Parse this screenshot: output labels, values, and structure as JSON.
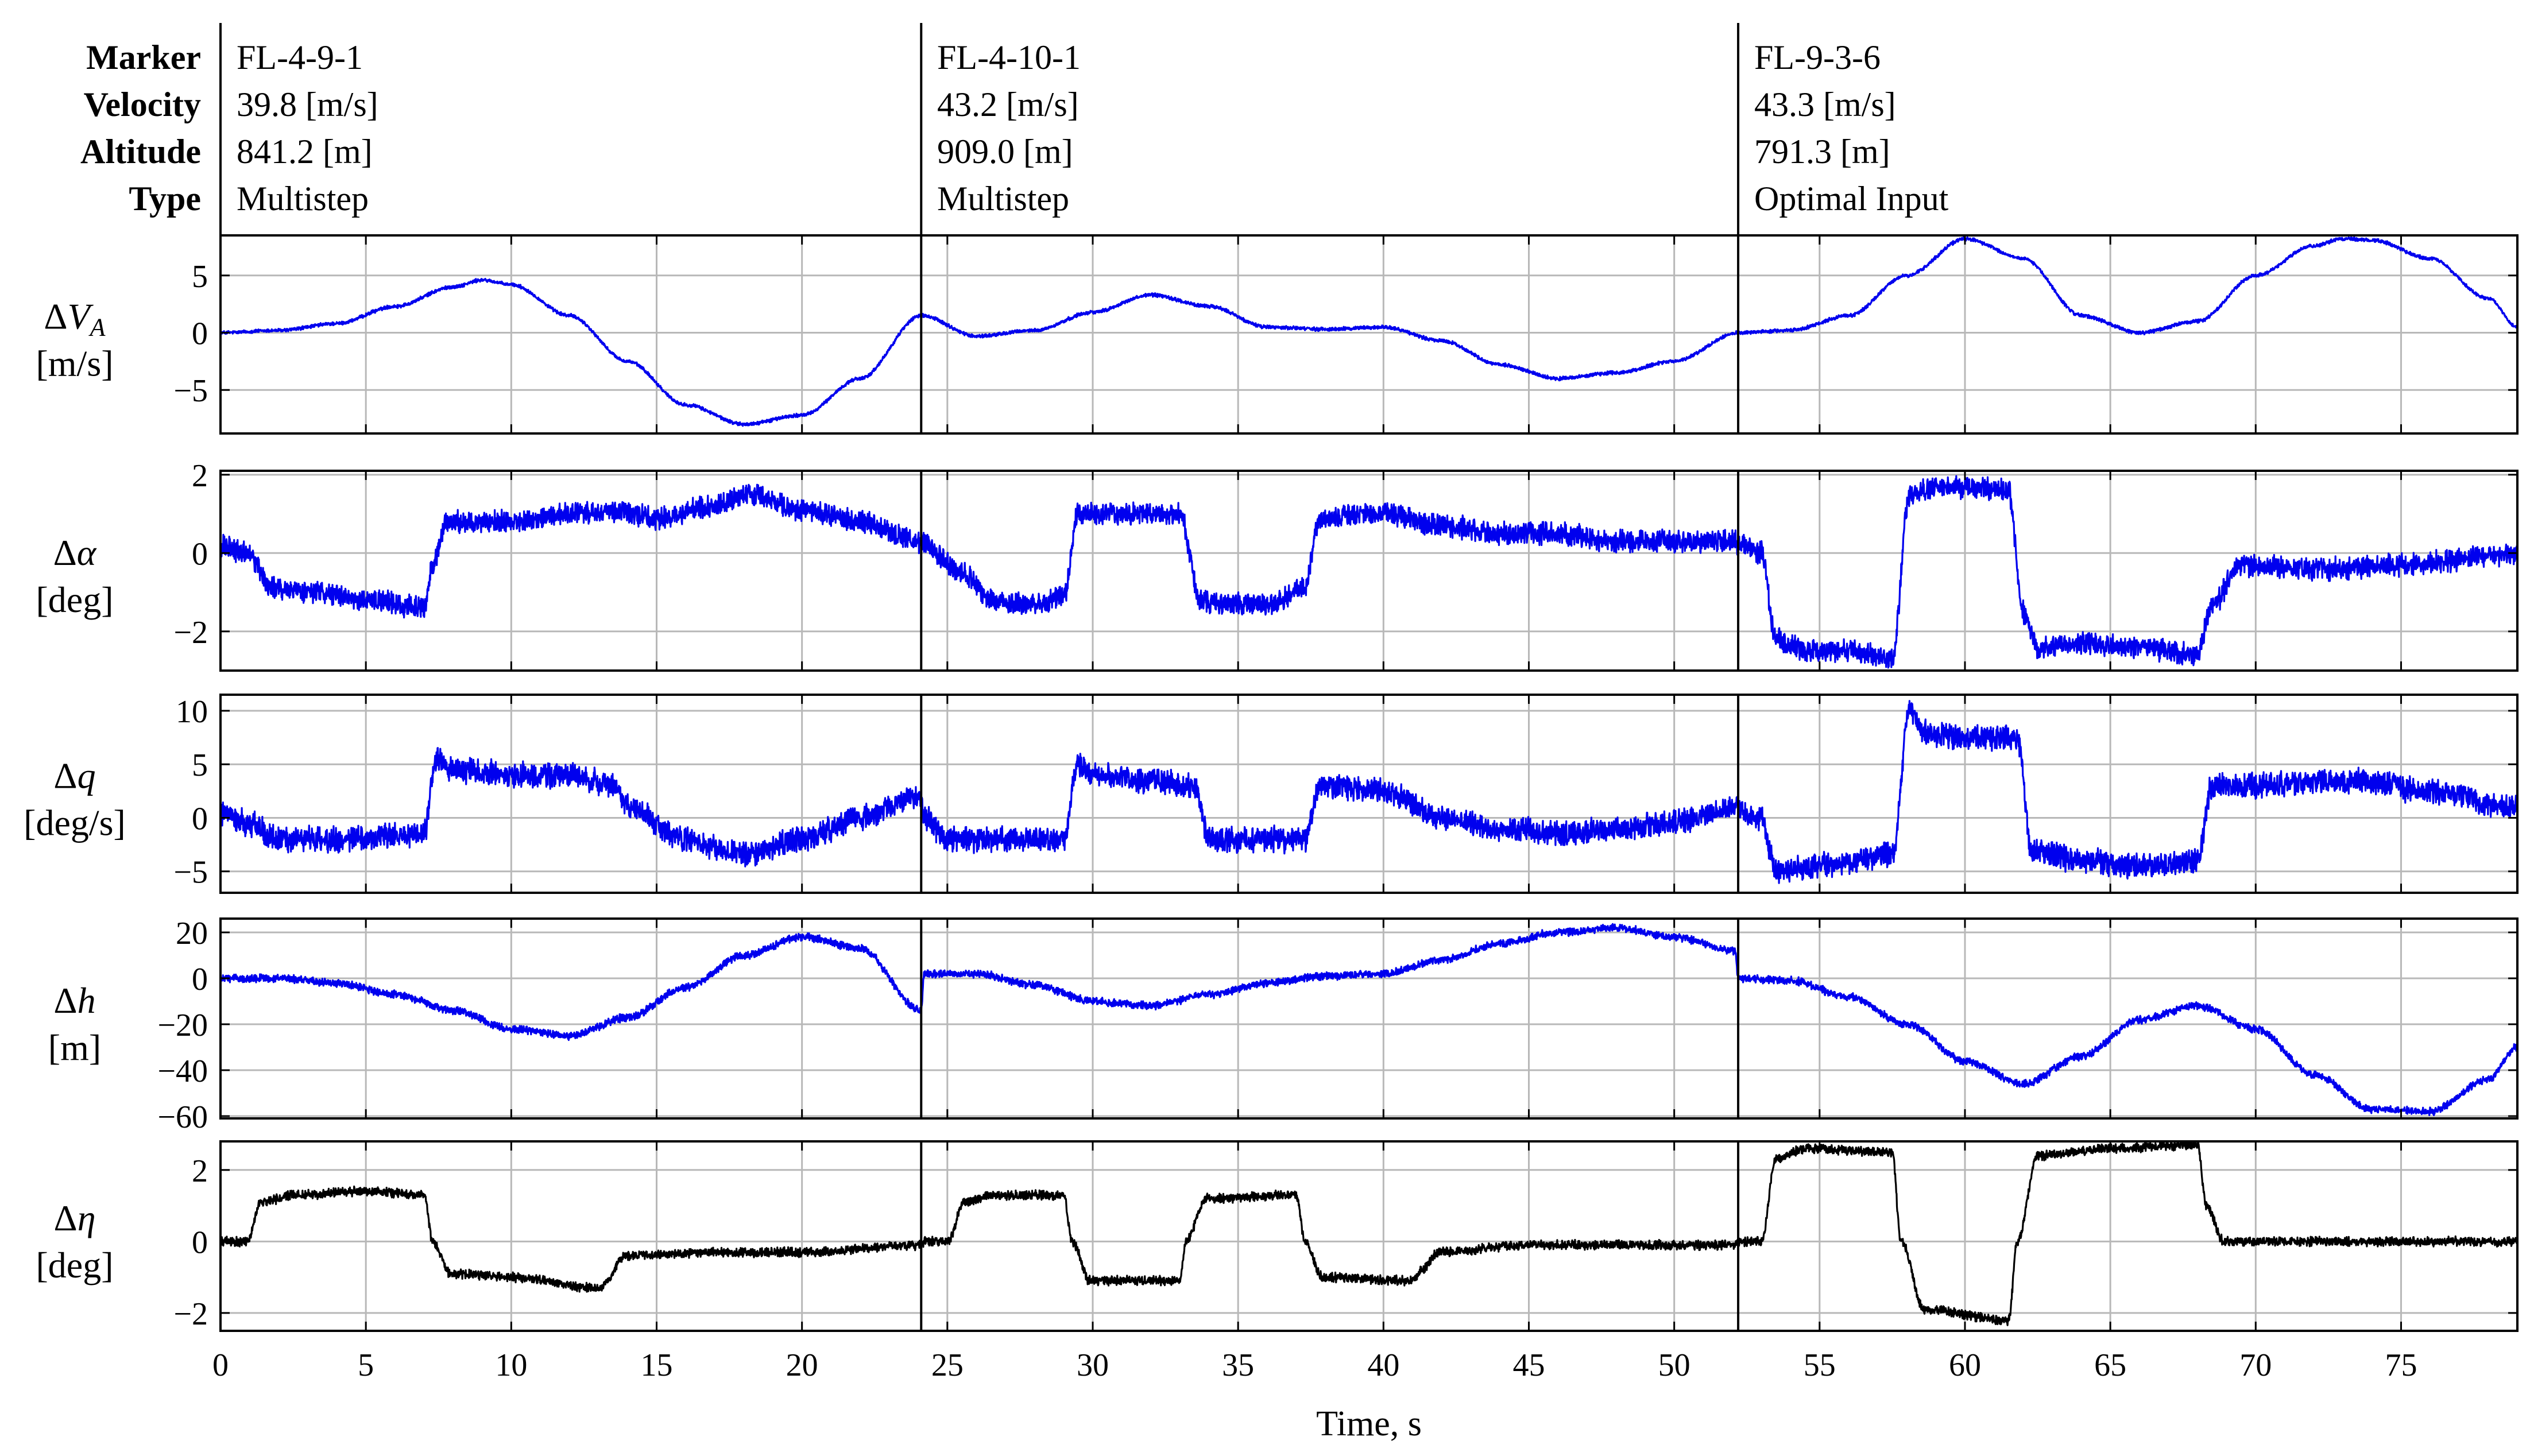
{
  "header": {
    "labels": [
      "Marker",
      "Velocity",
      "Altitude",
      "Type"
    ],
    "flights": [
      {
        "marker": "FL-4-9-1",
        "velocity": "39.8 [m/s]",
        "altitude": "841.2 [m]",
        "type": "Multistep"
      },
      {
        "marker": "FL-4-10-1",
        "velocity": "43.2 [m/s]",
        "altitude": "909.0 [m]",
        "type": "Multistep"
      },
      {
        "marker": "FL-9-3-6",
        "velocity": "43.3 [m/s]",
        "altitude": "791.3 [m]",
        "type": "Optimal Input"
      }
    ]
  },
  "chart_data": {
    "type": "line",
    "xlabel": "Time, s",
    "xlim": [
      0,
      79
    ],
    "xticks": [
      0,
      5,
      10,
      15,
      20,
      25,
      30,
      35,
      40,
      45,
      50,
      55,
      60,
      65,
      70,
      75
    ],
    "segment_boundaries": [
      24.1,
      52.2
    ],
    "grid": true,
    "colors": {
      "measured": "#0000ee",
      "input": "#000000"
    },
    "panels": [
      {
        "name": "dVA",
        "ylabel_symbol": "ΔV",
        "ylabel_sub": "A",
        "ylabel_unit": "[m/s]",
        "ylim": [
          -8.8,
          8.5
        ],
        "yticks": [
          5,
          0,
          -5
        ],
        "ytick_labels": [
          "5",
          "0",
          "−5"
        ],
        "color": "#0000ee",
        "noise": 0.12,
        "x": [
          0,
          2,
          4,
          6,
          8,
          9,
          10,
          12,
          14,
          16,
          18,
          20,
          22,
          24.1,
          26,
          28,
          30,
          32,
          34,
          36,
          38,
          40,
          42,
          44,
          46,
          48,
          50,
          52.2,
          54,
          56,
          58,
          60,
          62,
          64,
          66,
          68,
          70,
          72,
          73,
          74,
          76,
          78,
          79
        ],
        "y": [
          0,
          0.2,
          0.8,
          2.3,
          4,
          4.6,
          4.2,
          1.5,
          -2.5,
          -6.3,
          -8,
          -7.2,
          -4,
          1.5,
          -0.3,
          0.2,
          1.8,
          3.3,
          2.3,
          0.5,
          0.3,
          0.5,
          -0.7,
          -2.8,
          -4,
          -3.5,
          -2.5,
          0,
          0.2,
          1.5,
          5,
          8.2,
          6.5,
          1.5,
          0,
          1,
          5,
          7.6,
          8.2,
          8.1,
          6.5,
          3,
          0.5
        ]
      },
      {
        "name": "dalpha",
        "ylabel_symbol": "Δα",
        "ylabel_sub": "",
        "ylabel_unit": "[deg]",
        "ylim": [
          -3.0,
          2.1
        ],
        "yticks": [
          2,
          0,
          -2
        ],
        "ytick_labels": [
          "2",
          "0",
          "−2"
        ],
        "color": "#0000ee",
        "noise": 0.22,
        "x": [
          0,
          0.9,
          1.8,
          3,
          5,
          7,
          7.3,
          7.8,
          10,
          12,
          13.5,
          15,
          17,
          18,
          20,
          22,
          24.1,
          24.2,
          25.5,
          26.5,
          28,
          29,
          29.5,
          30.5,
          32,
          33,
          33.7,
          34.5,
          36,
          37.3,
          37.8,
          40,
          42,
          44,
          46,
          48,
          50,
          52.1,
          52.2,
          53,
          53.5,
          54.5,
          56,
          57.5,
          58.1,
          59,
          61.5,
          62,
          62.5,
          64,
          66,
          68,
          68.5,
          69.5,
          72,
          75,
          79
        ],
        "y": [
          0.2,
          0,
          -0.9,
          -1.0,
          -1.2,
          -1.4,
          -0.3,
          0.8,
          0.8,
          1.0,
          1.1,
          0.9,
          1.2,
          1.5,
          1.1,
          0.8,
          0.3,
          0.2,
          -0.5,
          -1.2,
          -1.3,
          -1.1,
          1.0,
          1.0,
          1.0,
          1.0,
          -1.2,
          -1.3,
          -1.3,
          -0.9,
          0.9,
          1.0,
          0.7,
          0.5,
          0.5,
          0.3,
          0.3,
          0.3,
          0.2,
          0.0,
          -2.2,
          -2.5,
          -2.5,
          -2.7,
          1.5,
          1.7,
          1.6,
          -1.5,
          -2.4,
          -2.3,
          -2.4,
          -2.6,
          -1.3,
          -0.3,
          -0.4,
          -0.3,
          0.0
        ]
      },
      {
        "name": "dq",
        "ylabel_symbol": "Δq",
        "ylabel_sub": "",
        "ylabel_unit": "[deg/s]",
        "ylim": [
          -7.0,
          11.5
        ],
        "yticks": [
          10,
          5,
          0,
          -5
        ],
        "ytick_labels": [
          "10",
          "5",
          "0",
          "−5"
        ],
        "color": "#0000ee",
        "noise": 0.9,
        "x": [
          0,
          1,
          2,
          4,
          7,
          7.4,
          8,
          10,
          12,
          13.5,
          14,
          16,
          18,
          20,
          22,
          24.1,
          24.2,
          25,
          27,
          29,
          29.5,
          30,
          32,
          33.5,
          34,
          36,
          37.3,
          37.8,
          40,
          42,
          44,
          46,
          48,
          50,
          52.1,
          52.2,
          53,
          53.5,
          55,
          57.5,
          58.1,
          58.6,
          60,
          61.8,
          62.3,
          64,
          66,
          68,
          68.5,
          70,
          73,
          76,
          79
        ],
        "y": [
          0.5,
          -0.5,
          -2,
          -2,
          -1.5,
          5.5,
          4.5,
          4,
          4,
          3,
          1,
          -2,
          -3.5,
          -2,
          0,
          2,
          0,
          -2,
          -2,
          -2,
          5,
          4,
          3.5,
          3,
          -2,
          -2,
          -2,
          3,
          2.5,
          0,
          -1,
          -1.5,
          -1,
          -0.5,
          1,
          0.5,
          0,
          -5,
          -4.5,
          -3.5,
          10,
          8,
          7.5,
          7.5,
          -3,
          -4,
          -4.5,
          -4,
          3,
          3,
          3.5,
          2.5,
          1
        ]
      },
      {
        "name": "dh",
        "ylabel_symbol": "Δh",
        "ylabel_sub": "",
        "ylabel_unit": "[m]",
        "ylim": [
          -61,
          26
        ],
        "yticks": [
          20,
          0,
          -20,
          -40,
          -60
        ],
        "ytick_labels": [
          "20",
          "0",
          "−20",
          "−40",
          "−60"
        ],
        "color": "#0000ee",
        "noise": 1.3,
        "x": [
          0,
          2,
          4,
          6,
          8,
          10,
          12,
          14,
          16,
          18,
          20,
          22,
          24.1,
          24.2,
          26,
          28,
          30,
          32,
          34,
          36,
          38,
          40,
          42,
          44,
          46,
          48,
          50,
          52.1,
          52.2,
          54,
          56,
          58,
          60,
          62,
          64,
          66,
          68,
          70,
          72,
          74,
          76,
          78,
          79
        ],
        "y": [
          0,
          0,
          -2,
          -7,
          -14,
          -22,
          -25,
          -17,
          -4,
          10,
          18,
          13,
          -14,
          2,
          2,
          -3,
          -10,
          -12,
          -7,
          -2,
          1,
          2,
          8,
          15,
          20,
          22,
          18,
          12,
          0,
          -1,
          -8,
          -20,
          -36,
          -46,
          -34,
          -18,
          -12,
          -22,
          -42,
          -57,
          -58,
          -44,
          -30
        ]
      },
      {
        "name": "deta",
        "ylabel_symbol": "Δη",
        "ylabel_sub": "",
        "ylabel_unit": "[deg]",
        "ylim": [
          -2.5,
          2.8
        ],
        "yticks": [
          2,
          0,
          -2
        ],
        "ytick_labels": [
          "2",
          "0",
          "−2"
        ],
        "color": "#000000",
        "noise": 0.1,
        "x": [
          0,
          0.9,
          1.4,
          2.5,
          5,
          7,
          7.3,
          7.9,
          10,
          13,
          13.2,
          13.9,
          17,
          20,
          24.1,
          24.2,
          25,
          25.6,
          26.5,
          29,
          29.3,
          29.9,
          33,
          33.2,
          33.9,
          37,
          37.3,
          37.9,
          41,
          41.3,
          41.9,
          45,
          52.1,
          52.2,
          53,
          53.5,
          54.5,
          57.5,
          57.8,
          58.6,
          61.5,
          61.8,
          62.5,
          65,
          68,
          68.3,
          68.9,
          72,
          79
        ],
        "y": [
          0,
          0,
          1.1,
          1.3,
          1.4,
          1.3,
          0,
          -0.9,
          -1.0,
          -1.3,
          -1.2,
          -0.4,
          -0.3,
          -0.3,
          -0.1,
          0,
          0,
          1.1,
          1.3,
          1.3,
          0,
          -1.1,
          -1.1,
          0,
          1.2,
          1.3,
          0,
          -1.0,
          -1.1,
          -0.8,
          -0.3,
          -0.1,
          -0.1,
          0,
          0,
          2.3,
          2.6,
          2.5,
          0,
          -1.9,
          -2.2,
          0,
          2.4,
          2.6,
          2.7,
          1.0,
          0,
          0,
          0
        ]
      }
    ]
  }
}
